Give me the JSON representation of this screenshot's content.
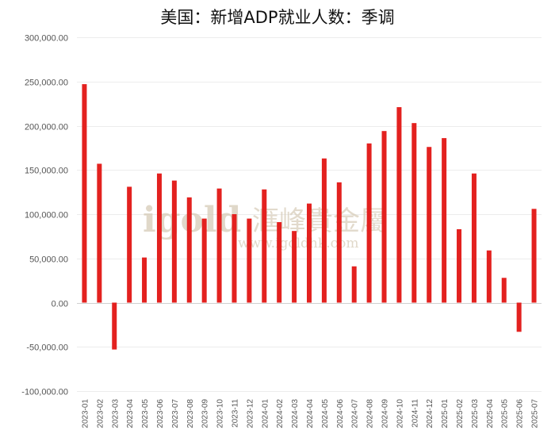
{
  "title": "美国：新增ADP就业人数：季调",
  "watermark": {
    "logo_text": "igold",
    "brand_cn": "滙峰貴金屬",
    "site": "www.igoldhk.com",
    "color": "#d6cbb7"
  },
  "chart_data": {
    "type": "bar",
    "title": "美国：新增ADP就业人数：季调",
    "xlabel": "",
    "ylabel": "",
    "ylim": [
      -100000,
      300000
    ],
    "yticks": [
      "300,000.00",
      "250,000.00",
      "200,000.00",
      "150,000.00",
      "100,000.00",
      "50,000.00",
      "0.00",
      "-50,000.00",
      "-100,000.00"
    ],
    "ytick_values": [
      300000,
      250000,
      200000,
      150000,
      100000,
      50000,
      0,
      -50000,
      -100000
    ],
    "grid": true,
    "legend": "none",
    "bar_color": "#e3211f",
    "categories": [
      "2023-01",
      "2023-02",
      "2023-03",
      "2023-04",
      "2023-05",
      "2023-06",
      "2023-07",
      "2023-08",
      "2023-09",
      "2023-10",
      "2023-11",
      "2023-12",
      "2024-01",
      "2024-02",
      "2024-03",
      "2024-04",
      "2024-05",
      "2024-06",
      "2024-07",
      "2024-08",
      "2024-09",
      "2024-10",
      "2024-11",
      "2024-12",
      "2025-01",
      "2025-02",
      "2025-03",
      "2025-04",
      "2025-05",
      "2025-06",
      "2025-07"
    ],
    "values": [
      247000,
      157000,
      -53000,
      131000,
      51000,
      146000,
      138000,
      119000,
      95000,
      129000,
      100000,
      95000,
      128000,
      91000,
      81000,
      112000,
      163000,
      136000,
      41000,
      180000,
      194000,
      221000,
      203000,
      176000,
      186000,
      83000,
      146000,
      59000,
      28000,
      -33000,
      106000
    ]
  }
}
